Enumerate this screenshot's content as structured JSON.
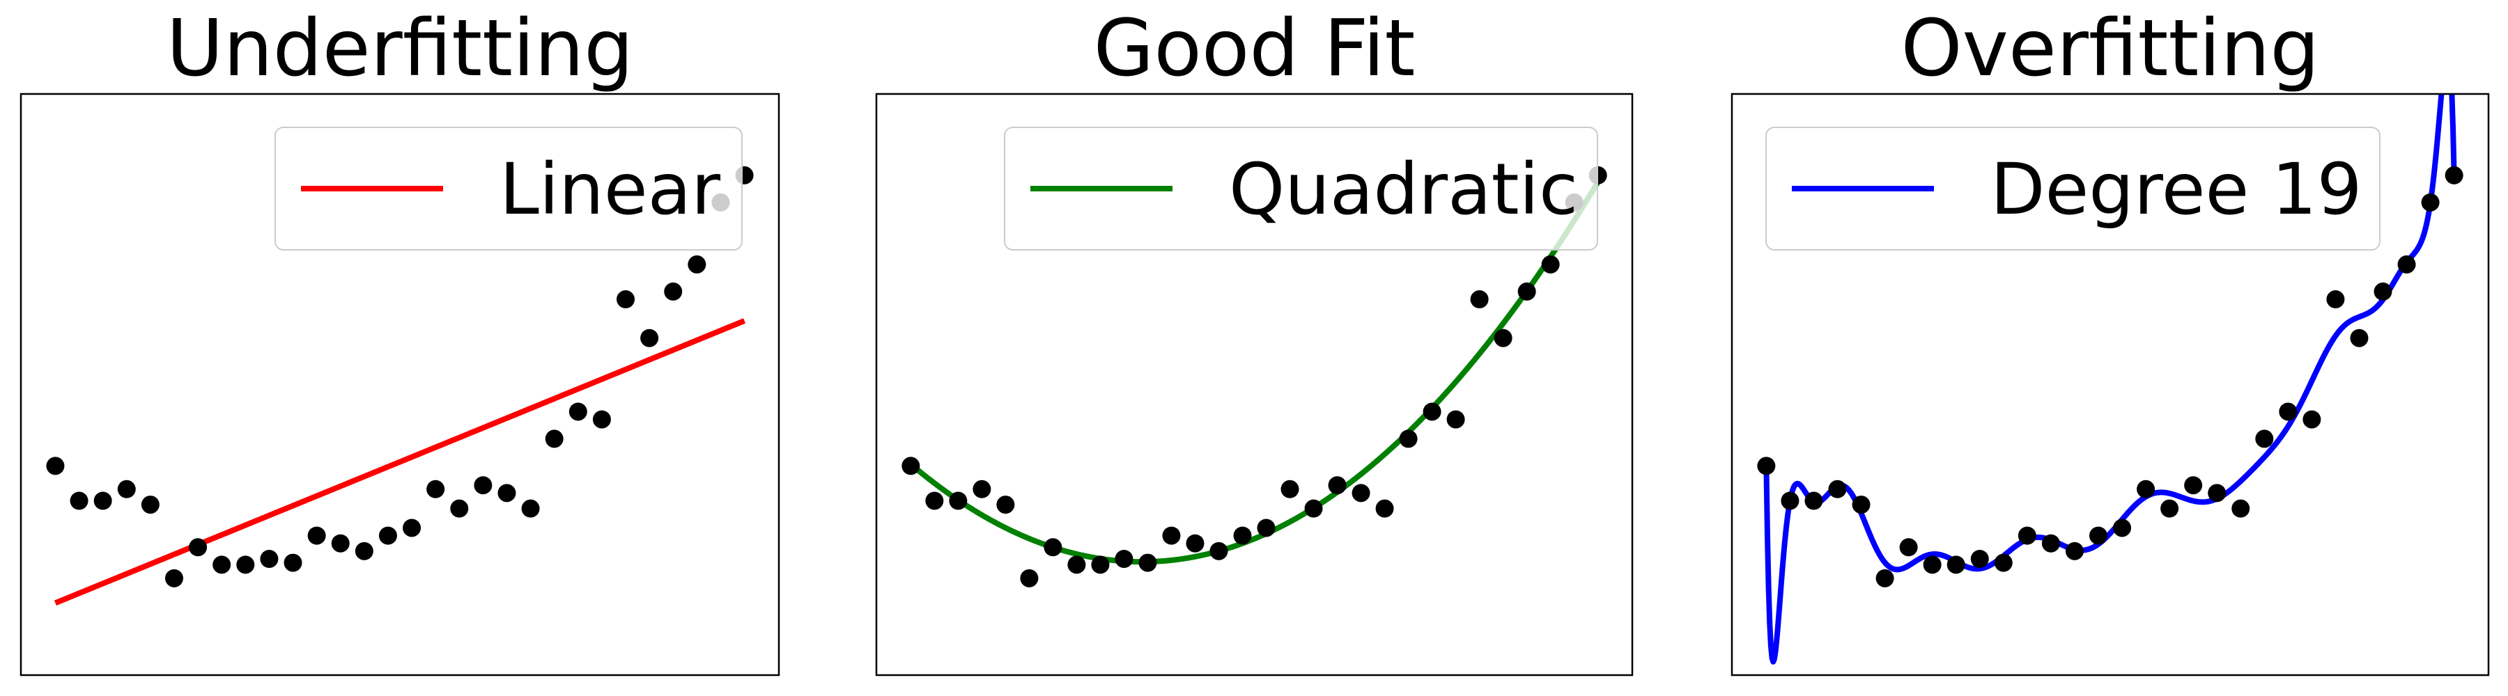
{
  "points": {
    "x": [
      0,
      1,
      2,
      3,
      4,
      5,
      6,
      7,
      8,
      9,
      10,
      11,
      12,
      13,
      14,
      15,
      16,
      17,
      18,
      19,
      20,
      21,
      22,
      23,
      24,
      25,
      26,
      27,
      28,
      29
    ],
    "y": [
      7.4,
      6.5,
      6.5,
      6.8,
      6.4,
      4.5,
      5.3,
      4.85,
      4.85,
      5.0,
      4.9,
      5.6,
      5.4,
      5.2,
      5.6,
      5.8,
      6.8,
      6.3,
      6.9,
      6.7,
      6.3,
      8.1,
      8.8,
      8.6,
      11.7,
      10.7,
      11.9,
      12.6,
      14.2,
      14.9
    ],
    "color": "#000000"
  },
  "chart_data": [
    {
      "type": "scatter",
      "title": "Underfitting",
      "fit": {
        "name": "Linear",
        "color": "#ff0000",
        "degree": 1
      },
      "ylim": [
        2,
        17
      ]
    },
    {
      "type": "scatter",
      "title": "Good Fit",
      "fit": {
        "name": "Quadratic",
        "color": "#008000",
        "degree": 2
      },
      "ylim": [
        2,
        17
      ]
    },
    {
      "type": "scatter",
      "title": "Overfitting",
      "fit": {
        "name": "Degree 19",
        "color": "#0000ff",
        "degree": 19
      },
      "ylim": [
        2,
        17
      ]
    }
  ]
}
